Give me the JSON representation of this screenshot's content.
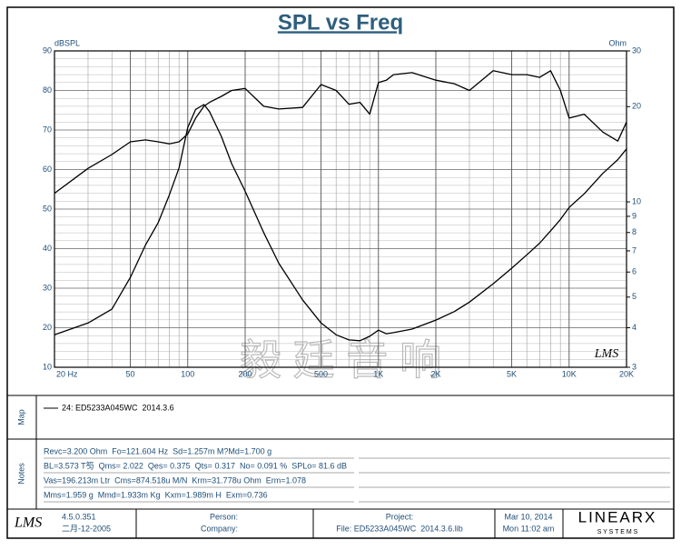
{
  "chart_data": {
    "type": "line",
    "title": "SPL vs Freq",
    "ylabel": "dBSPL",
    "y2label": "Ohm",
    "x": [
      20,
      30,
      40,
      50,
      60,
      70,
      80,
      90,
      100,
      110,
      121.6,
      130,
      150,
      170,
      200,
      250,
      300,
      400,
      500,
      600,
      700,
      800,
      900,
      1000,
      1100,
      1200,
      1500,
      2000,
      2500,
      3000,
      4000,
      5000,
      6000,
      7000,
      8000,
      9000,
      10000,
      12000,
      15000,
      18000,
      20000
    ],
    "series": [
      {
        "name": "24: ED5233A045WC  2014.3.6",
        "color": "#000000",
        "values": [
          54,
          60.3,
          63.8,
          67,
          67.5,
          67,
          66.5,
          67,
          69,
          73,
          76,
          77,
          78.5,
          80,
          80.5,
          76,
          75.3,
          75.7,
          81.5,
          80,
          76.5,
          77,
          74,
          82,
          82.6,
          84,
          84.5,
          82.6,
          81.7,
          80,
          85,
          84,
          84,
          83.3,
          85,
          80,
          73,
          74,
          69.5,
          67.2,
          72
        ]
      },
      {
        "color": "#000000",
        "axis": "y2",
        "values": [
          3.8,
          4.14,
          4.58,
          5.77,
          7.3,
          8.6,
          10.5,
          12.8,
          17.2,
          19.6,
          20.3,
          19.3,
          16.1,
          13.2,
          10.8,
          8.0,
          6.4,
          4.9,
          4.14,
          3.8,
          3.66,
          3.64,
          3.76,
          3.93,
          3.83,
          3.86,
          3.96,
          4.23,
          4.5,
          4.82,
          5.51,
          6.17,
          6.8,
          7.4,
          8.1,
          8.8,
          9.6,
          10.6,
          12.3,
          13.6,
          14.7
        ]
      }
    ],
    "xscale": "log",
    "xlim": [
      20,
      20000
    ],
    "xticks": [
      {
        "value": 20,
        "label": "20 Hz"
      },
      50,
      100,
      200,
      500,
      {
        "value": 1000,
        "label": "1K"
      },
      {
        "value": 2000,
        "label": "2K"
      },
      {
        "value": 5000,
        "label": "5K"
      },
      {
        "value": 10000,
        "label": "10K"
      },
      {
        "value": 20000,
        "label": "20K"
      }
    ],
    "xgrid": [
      30,
      40,
      60,
      70,
      80,
      90,
      300,
      400,
      600,
      700,
      800,
      900,
      3000,
      4000,
      6000,
      7000,
      8000,
      9000
    ],
    "ylim": [
      10,
      90
    ],
    "yticks": [
      10,
      20,
      30,
      40,
      50,
      60,
      70,
      80,
      90
    ],
    "ygrid": [
      12,
      14,
      16,
      18,
      22,
      24,
      26,
      28,
      32,
      34,
      36,
      38,
      42,
      44,
      46,
      48,
      52,
      54,
      56,
      58,
      62,
      64,
      66,
      68,
      72,
      74,
      76,
      78,
      82,
      84,
      86,
      88
    ],
    "y2scale": "log",
    "y2lim": [
      3,
      30
    ],
    "y2ticks": [
      3,
      4,
      5,
      6,
      7,
      8,
      9,
      10,
      20,
      30
    ],
    "grid": true
  },
  "watermark": "毅 廷 音 响",
  "plot_logo": "LMS",
  "map": {
    "label": "Map"
  },
  "notes": {
    "label": "Notes",
    "lines": [
      "Revc=3.200 Ohm  Fo=121.604 Hz  Sd=1.257m M?Md=1.700 g",
      "BL=3.573 T笉  Qms= 2.022  Qes= 0.375  Qts= 0.317  No= 0.091 %  SPLo= 81.6 dB",
      "Vas=196.213m Ltr  Cms=874.518u M/N  Krm=31.778u Ohm  Erm=1.078",
      "Mms=1.959 g  Mmd=1.933m Kg  Kxm=1.989m H  Exm=0.736"
    ]
  },
  "footer": {
    "logo": "LMS",
    "version": "4.5.0.351",
    "build_date": "二月-12-2005",
    "person": "Person:",
    "company": "Company:",
    "project": "Project:",
    "file": "File: ED5233A045WC  2014.3.6.lib",
    "date": "Mar 10, 2014",
    "time": "Mon 11:02 am",
    "brand": "LINEARX",
    "brand_sub": "S Y S T E M S"
  }
}
